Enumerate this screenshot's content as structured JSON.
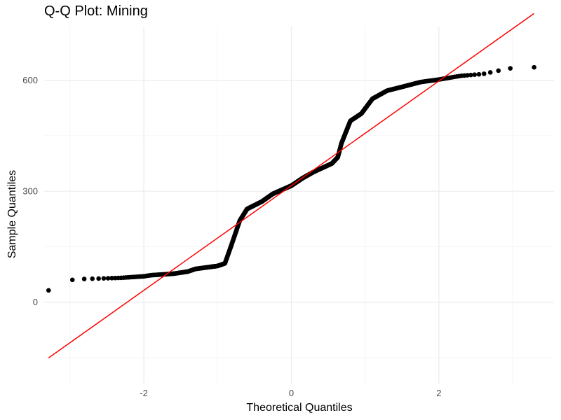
{
  "chart_data": {
    "type": "scatter",
    "title": "Q-Q Plot: Mining",
    "xlabel": "Theoretical Quantiles",
    "ylabel": "Sample Quantiles",
    "xlim": [
      -3.35,
      3.56
    ],
    "ylim": [
      -220,
      745
    ],
    "x_ticks": [
      -2,
      0,
      2
    ],
    "y_ticks": [
      0,
      300,
      600
    ],
    "grid": true,
    "legend": "none",
    "n_points": 1000,
    "sample_quantile_anchors": [
      [
        -3.29,
        32
      ],
      [
        -2.95,
        62
      ],
      [
        -2.78,
        63
      ],
      [
        -2.6,
        64
      ],
      [
        -2.3,
        66
      ],
      [
        -2.0,
        70
      ],
      [
        -1.9,
        73
      ],
      [
        -1.6,
        77
      ],
      [
        -1.4,
        83
      ],
      [
        -1.3,
        90
      ],
      [
        -1.0,
        98
      ],
      [
        -0.9,
        105
      ],
      [
        -0.82,
        150
      ],
      [
        -0.7,
        220
      ],
      [
        -0.6,
        252
      ],
      [
        -0.4,
        272
      ],
      [
        -0.25,
        293
      ],
      [
        0.0,
        315
      ],
      [
        0.15,
        335
      ],
      [
        0.3,
        352
      ],
      [
        0.55,
        375
      ],
      [
        0.63,
        392
      ],
      [
        0.68,
        430
      ],
      [
        0.8,
        490
      ],
      [
        0.95,
        510
      ],
      [
        1.1,
        550
      ],
      [
        1.3,
        572
      ],
      [
        1.5,
        582
      ],
      [
        1.75,
        595
      ],
      [
        2.0,
        602
      ],
      [
        2.3,
        612
      ],
      [
        2.6,
        617
      ],
      [
        2.95,
        632
      ],
      [
        3.29,
        635
      ]
    ],
    "reference_line": {
      "slope": 141.5,
      "intercept": 315,
      "color": "#ff0000"
    },
    "point_color": "#000000"
  }
}
